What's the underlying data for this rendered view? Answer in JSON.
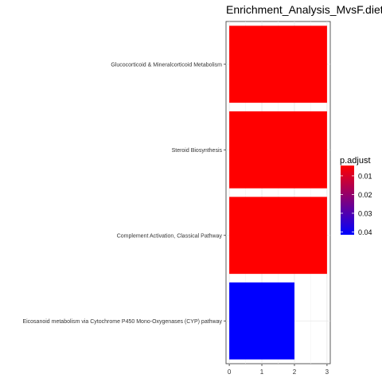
{
  "chart_data": {
    "type": "bar",
    "orientation": "horizontal",
    "title": "Enrichment_Analysis_MvsF.diet_w",
    "categories": [
      "Glucocorticoid & Mineralcorticoid Metabolism",
      "Steroid Biosynthesis",
      "Complement Activation, Classical Pathway",
      "Eicosanoid metabolism via Cytochrome P450 Mono-Oxygenases (CYP) pathway"
    ],
    "values": [
      3,
      3,
      3,
      2
    ],
    "bar_colors": [
      "#ff0000",
      "#ff0000",
      "#ff0000",
      "#0000ff"
    ],
    "xlim": [
      -0.1,
      3.1
    ],
    "x_ticks": [
      "0",
      "1",
      "2",
      "3"
    ],
    "grid": true,
    "legend": {
      "title": "p.adjust",
      "placement": "right",
      "ticks": [
        "0.01",
        "0.02",
        "0.03",
        "0.04"
      ],
      "gradient": [
        "#ff0000",
        "#0000ff"
      ]
    }
  }
}
